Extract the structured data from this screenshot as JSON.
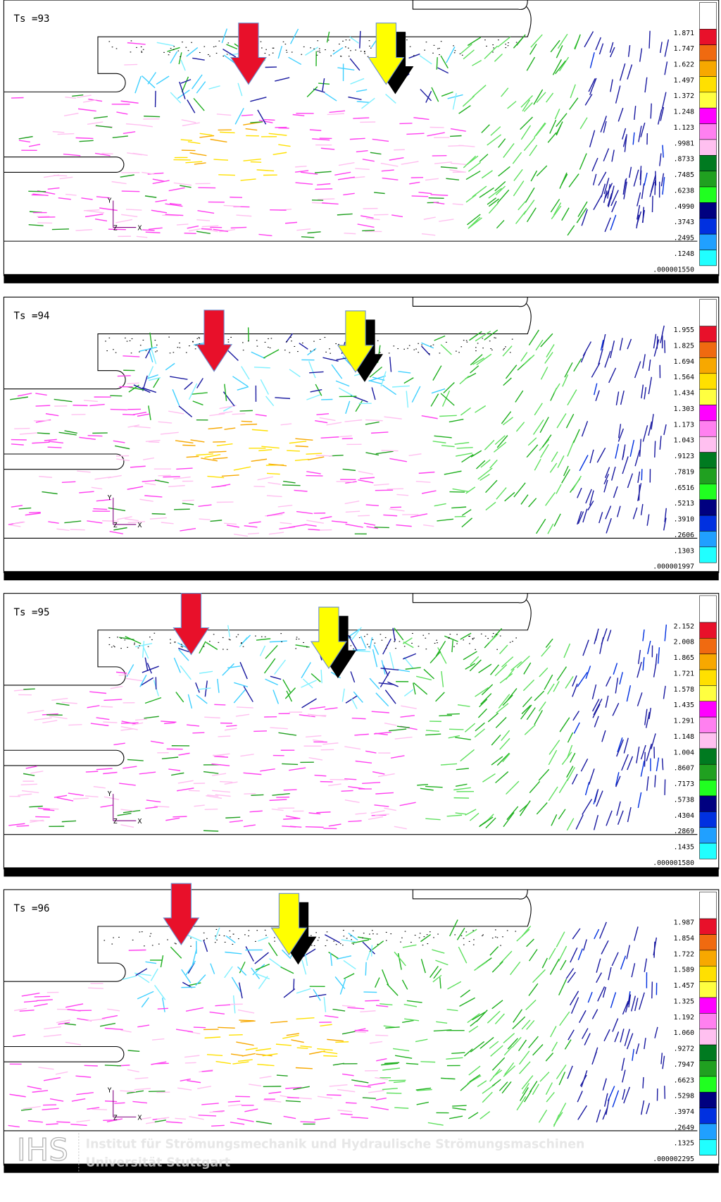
{
  "panels": [
    {
      "label": "Ts =93",
      "legend": [
        "1.871",
        "1.747",
        "1.622",
        "1.497",
        "1.372",
        "1.248",
        "1.123",
        ".9981",
        ".8733",
        ".7485",
        ".6238",
        ".4990",
        ".3743",
        ".2495",
        ".1248"
      ],
      "min": ".000001550"
    },
    {
      "label": "Ts =94",
      "legend": [
        "1.955",
        "1.825",
        "1.694",
        "1.564",
        "1.434",
        "1.303",
        "1.173",
        "1.043",
        ".9123",
        ".7819",
        ".6516",
        ".5213",
        ".3910",
        ".2606",
        ".1303"
      ],
      "min": ".000001997"
    },
    {
      "label": "Ts =95",
      "legend": [
        "2.152",
        "2.008",
        "1.865",
        "1.721",
        "1.578",
        "1.435",
        "1.291",
        "1.148",
        "1.004",
        ".8607",
        ".7173",
        ".5738",
        ".4304",
        ".2869",
        ".1435"
      ],
      "min": ".000001580"
    },
    {
      "label": "Ts =96",
      "legend": [
        "1.987",
        "1.854",
        "1.722",
        "1.589",
        "1.457",
        "1.325",
        "1.192",
        "1.060",
        ".9272",
        ".7947",
        ".6623",
        ".5298",
        ".3974",
        ".2649",
        ".1325"
      ],
      "min": ".000002295"
    }
  ],
  "axis_labels": [
    "Y",
    "Z",
    "X"
  ],
  "footer": {
    "logo": "IHS",
    "line1": "Institut für Strömungsmechanik und Hydraulische Strömungsmaschinen",
    "line2": "Universität Stuttgart"
  }
}
